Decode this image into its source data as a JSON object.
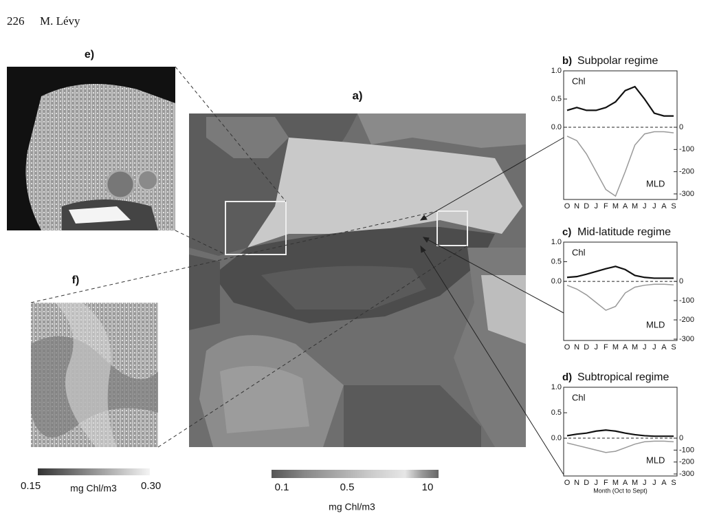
{
  "header": {
    "page_number": "226",
    "author": "M. Lévy"
  },
  "maps": {
    "main_label": "a)",
    "inset_e_label": "e)",
    "inset_f_label": "f)"
  },
  "colorbars": {
    "inset": {
      "min_label": "0.15",
      "unit": "mg Chl/m3",
      "max_label": "0.30"
    },
    "main": {
      "ticks": [
        "0.1",
        "0.5",
        "10"
      ],
      "unit": "mg Chl/m3"
    }
  },
  "chart_data": [
    {
      "type": "line",
      "panel": "b)",
      "title": "Subpolar regime",
      "categories": [
        "O",
        "N",
        "D",
        "J",
        "F",
        "M",
        "A",
        "M",
        "J",
        "J",
        "A",
        "S"
      ],
      "series": [
        {
          "name": "Chl",
          "color": "#111111",
          "values": [
            0.3,
            0.35,
            0.3,
            0.3,
            0.35,
            0.45,
            0.65,
            0.72,
            0.5,
            0.25,
            0.2,
            0.2
          ]
        },
        {
          "name": "MLD",
          "color": "#999999",
          "axis": "y2",
          "values": [
            -40,
            -60,
            -120,
            -200,
            -280,
            -310,
            -200,
            -80,
            -30,
            -20,
            -20,
            -25
          ]
        }
      ],
      "ylim": [
        -1.28,
        1.0
      ],
      "yticks": [
        {
          "value": 0,
          "label": "0.0"
        },
        0.5,
        {
          "value": 1,
          "label": "1.0"
        }
      ],
      "y2lim": [
        -325,
        254
      ],
      "y2ticks": [
        0,
        -100,
        -200,
        -300
      ]
    },
    {
      "type": "line",
      "panel": "c)",
      "title": "Mid-latitude regime",
      "categories": [
        "O",
        "N",
        "D",
        "J",
        "F",
        "M",
        "A",
        "M",
        "J",
        "J",
        "A",
        "S"
      ],
      "series": [
        {
          "name": "Chl",
          "color": "#111111",
          "values": [
            0.1,
            0.12,
            0.18,
            0.25,
            0.32,
            0.38,
            0.3,
            0.15,
            0.1,
            0.08,
            0.08,
            0.08
          ]
        },
        {
          "name": "MLD",
          "color": "#999999",
          "axis": "y2",
          "values": [
            -20,
            -40,
            -70,
            -110,
            -150,
            -130,
            -60,
            -30,
            -20,
            -15,
            -15,
            -18
          ]
        }
      ],
      "ylim": [
        -1.51,
        1.0
      ],
      "yticks": [
        {
          "value": 0,
          "label": "0.0"
        },
        0.5,
        {
          "value": 1,
          "label": "1.0"
        }
      ],
      "y2lim": [
        -307,
        204
      ],
      "y2ticks": [
        0,
        -100,
        -200,
        -300
      ]
    },
    {
      "type": "line",
      "panel": "d)",
      "title": "Subtropical regime",
      "categories": [
        "O",
        "N",
        "D",
        "J",
        "F",
        "M",
        "A",
        "M",
        "J",
        "J",
        "A",
        "S"
      ],
      "series": [
        {
          "name": "Chl",
          "color": "#111111",
          "values": [
            0.05,
            0.08,
            0.1,
            0.14,
            0.16,
            0.14,
            0.1,
            0.07,
            0.05,
            0.04,
            0.04,
            0.04
          ]
        },
        {
          "name": "MLD",
          "color": "#999999",
          "axis": "y2",
          "values": [
            -40,
            -60,
            -80,
            -100,
            -120,
            -110,
            -80,
            -50,
            -30,
            -25,
            -25,
            -30
          ]
        }
      ],
      "ylim": [
        -0.74,
        1.0
      ],
      "yticks": [
        {
          "value": 0,
          "label": "0.0"
        },
        0.5,
        {
          "value": 1,
          "label": "1.0"
        }
      ],
      "y2lim": [
        -317,
        427
      ],
      "y2ticks": [
        0,
        -100,
        -200,
        -300
      ],
      "xlabel": "Month (Oct to Sept)"
    }
  ]
}
